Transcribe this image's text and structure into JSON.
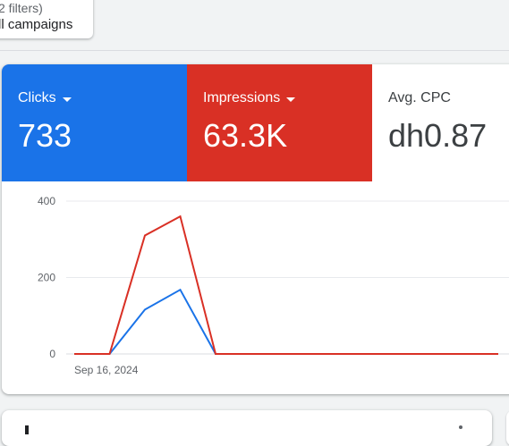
{
  "filter_chip": {
    "subtitle": "2 filters)",
    "title": "ll campaigns"
  },
  "metrics": [
    {
      "label": "Clicks",
      "value": "733",
      "color": "#1a73e8",
      "has_dropdown": true
    },
    {
      "label": "Impressions",
      "value": "63.3K",
      "color": "#d93025",
      "has_dropdown": true
    },
    {
      "label": "Avg. CPC",
      "value": "dh0.87",
      "color": "#ffffff",
      "has_dropdown": false
    }
  ],
  "chart_data": {
    "type": "line",
    "x_tick_label": "Sep 16, 2024",
    "y_ticks": [
      0,
      200,
      400
    ],
    "ylim": [
      0,
      400
    ],
    "x": [
      0,
      1,
      2,
      3,
      4,
      5,
      6,
      7,
      8,
      9,
      10,
      11,
      12
    ],
    "series": [
      {
        "color": "#1a73e8",
        "values": [
          0,
          0,
          116,
          168,
          0,
          0,
          0,
          0,
          0,
          0,
          0,
          0,
          0
        ]
      },
      {
        "color": "#d93025",
        "values": [
          0,
          0,
          310,
          360,
          0,
          0,
          0,
          0,
          0,
          0,
          0,
          0,
          0
        ]
      }
    ]
  }
}
